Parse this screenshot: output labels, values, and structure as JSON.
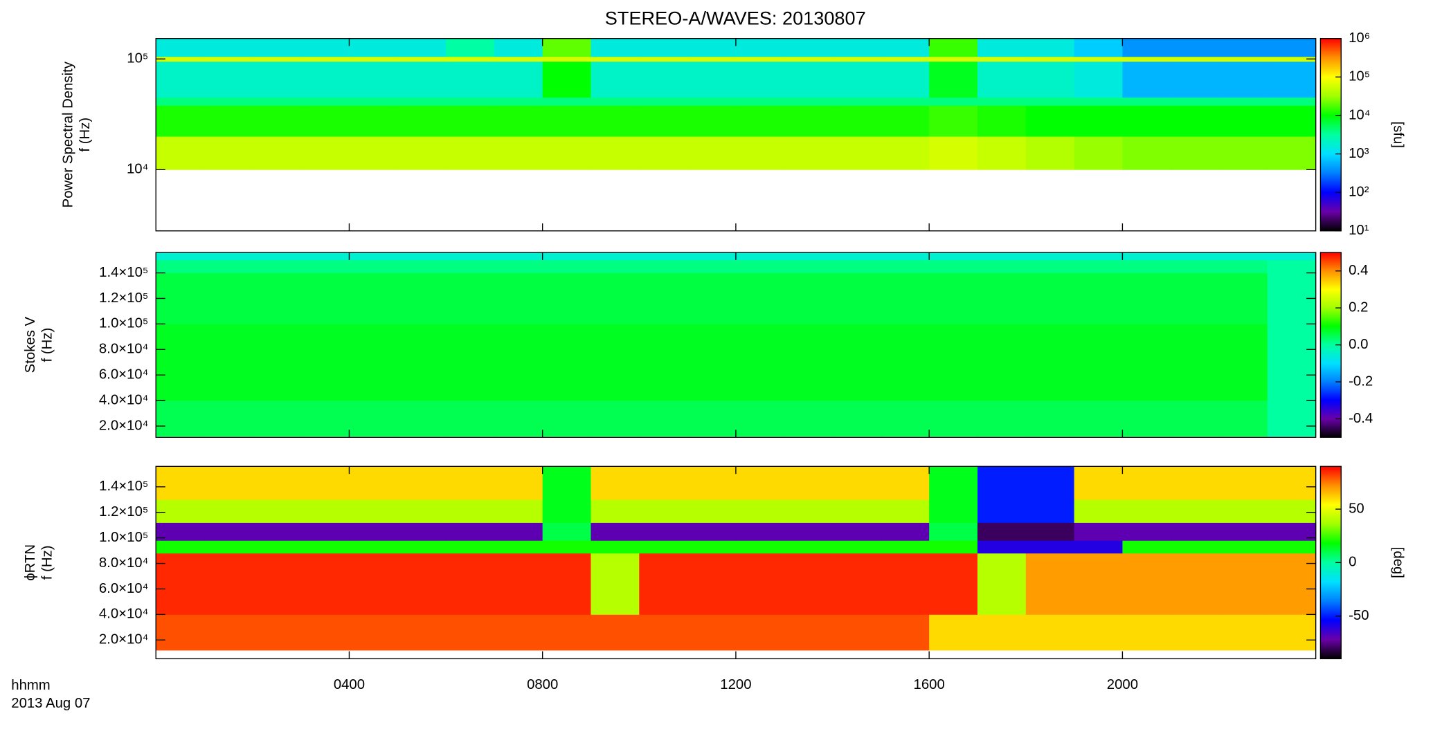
{
  "chart_data": [
    {
      "type": "heatmap",
      "title": "STEREO-A/WAVES: 20130807",
      "ylabel_lines": [
        "Power Spectral Density",
        "f (Hz)"
      ],
      "ylog": true,
      "ylim": [
        2800,
        153000
      ],
      "yticks": [
        {
          "value": 10000,
          "label": "10⁴"
        },
        {
          "value": 100000,
          "label": "10⁵"
        }
      ],
      "x_edges": [
        0,
        1,
        2,
        3,
        4,
        5,
        6,
        7,
        8,
        9,
        10,
        11,
        12,
        13,
        14,
        15,
        16,
        17,
        18,
        19,
        20,
        21,
        22,
        23,
        24
      ],
      "y_edges": [
        10000,
        20000,
        38000,
        45000,
        95000,
        105000,
        153000
      ],
      "z": [
        [
          50000,
          50000,
          50000,
          50000,
          50000,
          50000,
          50000,
          50000,
          50000,
          50000,
          50000,
          50000,
          50000,
          50000,
          50000,
          50000,
          60000,
          50000,
          40000,
          30000,
          25000,
          25000,
          25000,
          25000
        ],
        [
          12000,
          12000,
          12000,
          12000,
          12000,
          12000,
          12000,
          12000,
          12000,
          12000,
          12000,
          12000,
          12000,
          12000,
          12000,
          12000,
          15000,
          12000,
          10000,
          10000,
          10000,
          10000,
          10000,
          10000
        ],
        [
          4000,
          4000,
          4000,
          4000,
          4000,
          4000,
          4000,
          4000,
          4000,
          4000,
          4000,
          4000,
          4000,
          4000,
          4000,
          4000,
          4000,
          4000,
          4000,
          4000,
          4000,
          4000,
          4000,
          4000
        ],
        [
          2000,
          2000,
          2000,
          2000,
          2000,
          2000,
          2000,
          2000,
          10000,
          2000,
          2000,
          2000,
          2000,
          2000,
          2000,
          2000,
          8000,
          2000,
          2000,
          1500,
          600,
          600,
          600,
          600
        ],
        [
          60000,
          60000,
          60000,
          60000,
          60000,
          60000,
          60000,
          60000,
          60000,
          60000,
          60000,
          60000,
          60000,
          60000,
          60000,
          60000,
          60000,
          60000,
          60000,
          60000,
          60000,
          60000,
          60000,
          60000
        ],
        [
          1500,
          1500,
          1500,
          1500,
          1500,
          1500,
          3000,
          1500,
          20000,
          1500,
          1500,
          1500,
          1500,
          1500,
          1500,
          1500,
          15000,
          1500,
          1500,
          800,
          400,
          400,
          400,
          400
        ]
      ],
      "zlog": true,
      "zlim": [
        10,
        1000000
      ],
      "zticks": [
        {
          "value": 10,
          "label": "10¹"
        },
        {
          "value": 100,
          "label": "10²"
        },
        {
          "value": 1000,
          "label": "10³"
        },
        {
          "value": 10000,
          "label": "10⁴"
        },
        {
          "value": 100000,
          "label": "10⁵"
        },
        {
          "value": 1000000,
          "label": "10⁶"
        }
      ],
      "zlabel": "[sfu]",
      "colors": [
        "#000000",
        "#6a00a8",
        "#0000ff",
        "#0080ff",
        "#00e0ff",
        "#00ffa0",
        "#00ff00",
        "#a0ff00",
        "#ffff00",
        "#ff9000",
        "#ff0000"
      ]
    },
    {
      "type": "heatmap",
      "ylabel_lines": [
        "Stokes V",
        "f (Hz)"
      ],
      "ylog": false,
      "ylim": [
        11200,
        156000
      ],
      "yticks": [
        {
          "value": 20000,
          "label": "2.0×10⁴"
        },
        {
          "value": 40000,
          "label": "4.0×10⁴"
        },
        {
          "value": 60000,
          "label": "6.0×10⁴"
        },
        {
          "value": 80000,
          "label": "8.0×10⁴"
        },
        {
          "value": 100000,
          "label": "1.0×10⁵"
        },
        {
          "value": 120000,
          "label": "1.2×10⁵"
        },
        {
          "value": 140000,
          "label": "1.4×10⁵"
        }
      ],
      "x_edges": [
        0,
        1,
        2,
        3,
        4,
        5,
        6,
        7,
        8,
        9,
        10,
        11,
        12,
        13,
        14,
        15,
        16,
        17,
        18,
        19,
        20,
        21,
        22,
        23,
        24
      ],
      "y_edges": [
        12000,
        40000,
        100000,
        140000,
        150000,
        156000
      ],
      "z": [
        [
          0.05,
          0.05,
          0.05,
          0.05,
          0.05,
          0.05,
          0.05,
          0.05,
          0.05,
          0.05,
          0.05,
          0.05,
          0.05,
          0.05,
          0.05,
          0.05,
          0.05,
          0.05,
          0.05,
          0.05,
          0.05,
          0.05,
          0.05,
          0.0
        ],
        [
          0.08,
          0.08,
          0.08,
          0.08,
          0.08,
          0.08,
          0.08,
          0.08,
          0.08,
          0.08,
          0.08,
          0.08,
          0.08,
          0.08,
          0.08,
          0.08,
          0.08,
          0.08,
          0.08,
          0.08,
          0.08,
          0.08,
          0.08,
          0.0
        ],
        [
          0.06,
          0.06,
          0.06,
          0.06,
          0.06,
          0.06,
          0.06,
          0.06,
          0.06,
          0.06,
          0.06,
          0.06,
          0.06,
          0.06,
          0.06,
          0.06,
          0.06,
          0.06,
          0.06,
          0.06,
          0.06,
          0.06,
          0.06,
          0.0
        ],
        [
          0.02,
          0.02,
          0.02,
          0.02,
          0.02,
          0.02,
          0.02,
          0.02,
          0.02,
          0.02,
          0.02,
          0.02,
          0.02,
          0.02,
          0.02,
          0.02,
          0.02,
          0.02,
          0.02,
          0.02,
          0.02,
          0.02,
          0.02,
          0.0
        ],
        [
          -0.05,
          -0.05,
          -0.05,
          -0.05,
          -0.05,
          -0.05,
          -0.05,
          -0.05,
          -0.05,
          -0.05,
          -0.05,
          -0.05,
          -0.05,
          -0.05,
          -0.05,
          -0.05,
          -0.05,
          -0.05,
          -0.05,
          -0.05,
          -0.05,
          -0.05,
          -0.05,
          -0.05
        ]
      ],
      "zlog": false,
      "zlim": [
        -0.5,
        0.5
      ],
      "zticks": [
        {
          "value": -0.4,
          "label": "-0.4"
        },
        {
          "value": -0.2,
          "label": "-0.2"
        },
        {
          "value": 0,
          "label": "0.0"
        },
        {
          "value": 0.2,
          "label": "0.2"
        },
        {
          "value": 0.4,
          "label": "0.4"
        }
      ],
      "colors": [
        "#000000",
        "#6a00a8",
        "#0000ff",
        "#0080ff",
        "#00e0ff",
        "#00ffa0",
        "#00ff00",
        "#a0ff00",
        "#ffff00",
        "#ff9000",
        "#ff0000"
      ]
    },
    {
      "type": "heatmap",
      "ylabel_lines": [
        "ϕRTN",
        "f (Hz)"
      ],
      "ylog": false,
      "ylim": [
        5300,
        156000
      ],
      "yticks": [
        {
          "value": 20000,
          "label": "2.0×10⁴"
        },
        {
          "value": 40000,
          "label": "4.0×10⁴"
        },
        {
          "value": 60000,
          "label": "6.0×10⁴"
        },
        {
          "value": 80000,
          "label": "8.0×10⁴"
        },
        {
          "value": 100000,
          "label": "1.0×10⁵"
        },
        {
          "value": 120000,
          "label": "1.2×10⁵"
        },
        {
          "value": 140000,
          "label": "1.4×10⁵"
        }
      ],
      "x_edges": [
        0,
        1,
        2,
        3,
        4,
        5,
        6,
        7,
        8,
        9,
        10,
        11,
        12,
        13,
        14,
        15,
        16,
        17,
        18,
        19,
        20,
        21,
        22,
        23,
        24
      ],
      "y_edges": [
        12000,
        40000,
        88000,
        98000,
        112000,
        130000,
        156000
      ],
      "z": [
        [
          80,
          80,
          80,
          80,
          80,
          80,
          80,
          80,
          80,
          80,
          80,
          80,
          80,
          80,
          80,
          80,
          60,
          60,
          60,
          60,
          60,
          60,
          60,
          60
        ],
        [
          85,
          85,
          85,
          85,
          85,
          85,
          85,
          85,
          85,
          40,
          85,
          85,
          85,
          85,
          85,
          85,
          85,
          40,
          70,
          70,
          70,
          70,
          70,
          70
        ],
        [
          20,
          20,
          20,
          20,
          20,
          20,
          20,
          20,
          20,
          20,
          20,
          20,
          20,
          20,
          20,
          20,
          20,
          -60,
          -60,
          -60,
          20,
          20,
          20,
          20
        ],
        [
          -70,
          -70,
          -70,
          -70,
          -70,
          -70,
          -70,
          -70,
          10,
          -70,
          -70,
          -70,
          -70,
          -70,
          -70,
          -70,
          10,
          -80,
          -80,
          -70,
          -70,
          -70,
          -70,
          -70
        ],
        [
          40,
          40,
          40,
          40,
          40,
          40,
          40,
          40,
          15,
          40,
          40,
          40,
          40,
          40,
          40,
          40,
          15,
          -50,
          -50,
          40,
          40,
          40,
          40,
          40
        ],
        [
          60,
          60,
          60,
          60,
          60,
          60,
          60,
          60,
          15,
          60,
          60,
          60,
          60,
          60,
          60,
          60,
          15,
          -50,
          -50,
          60,
          60,
          60,
          60,
          60
        ]
      ],
      "zlog": false,
      "zlim": [
        -90,
        90
      ],
      "zticks": [
        -50,
        0,
        50
      ],
      "zlabel": "[deg]",
      "colors": [
        "#000000",
        "#6a00a8",
        "#0000ff",
        "#0080ff",
        "#00e0ff",
        "#00ffa0",
        "#00ff00",
        "#a0ff00",
        "#ffff00",
        "#ff9000",
        "#ff0000"
      ],
      "xlim": [
        0,
        24
      ],
      "xticks": [
        {
          "value": 4,
          "label": "0400"
        },
        {
          "value": 8,
          "label": "0800"
        },
        {
          "value": 12,
          "label": "1200"
        },
        {
          "value": 16,
          "label": "1600"
        },
        {
          "value": 20,
          "label": "2000"
        }
      ],
      "xlabel": "hhmm",
      "xlabel2": "2013 Aug 07"
    }
  ]
}
